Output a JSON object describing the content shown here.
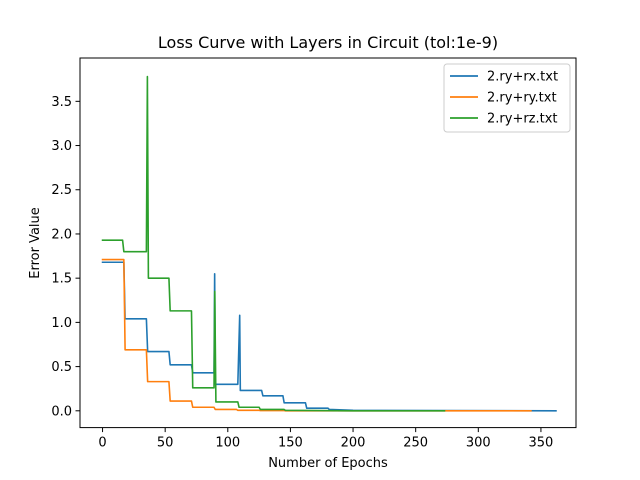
{
  "chart_data": {
    "type": "line",
    "title": "Loss Curve with Layers in Circuit (tol:1e-9)",
    "xlabel": "Number of Epochs",
    "ylabel": "Error Value",
    "xlim": [
      -18,
      378
    ],
    "ylim": [
      -0.19,
      3.99
    ],
    "xticks": [
      0,
      50,
      100,
      150,
      200,
      250,
      300,
      350
    ],
    "yticks": [
      0.0,
      0.5,
      1.0,
      1.5,
      2.0,
      2.5,
      3.0,
      3.5
    ],
    "xtick_labels": [
      "0",
      "50",
      "100",
      "150",
      "200",
      "250",
      "300",
      "350"
    ],
    "ytick_labels": [
      "0.0",
      "0.5",
      "1.0",
      "1.5",
      "2.0",
      "2.5",
      "3.0",
      "3.5"
    ],
    "legend_position": "top-right",
    "series": [
      {
        "name": "2.ry+rx.txt",
        "color": "#1f77b4",
        "x": [
          0,
          17,
          18,
          35,
          36,
          53,
          54,
          71,
          72,
          89,
          89.5,
          90,
          91,
          108,
          109.5,
          110,
          111,
          127,
          128,
          144,
          145,
          162,
          163,
          180,
          181,
          200,
          362
        ],
        "y": [
          1.68,
          1.68,
          1.04,
          1.04,
          0.67,
          0.67,
          0.52,
          0.52,
          0.43,
          0.43,
          1.55,
          0.3,
          0.3,
          0.3,
          1.08,
          0.23,
          0.23,
          0.23,
          0.17,
          0.17,
          0.09,
          0.09,
          0.03,
          0.03,
          0.015,
          0.005,
          0.0
        ]
      },
      {
        "name": "2.ry+ry.txt",
        "color": "#ff7f0e",
        "x": [
          0,
          17,
          18,
          35,
          36,
          53,
          54,
          71,
          72,
          89,
          90,
          107,
          108,
          125,
          126,
          145,
          146,
          200,
          342
        ],
        "y": [
          1.71,
          1.71,
          0.69,
          0.69,
          0.33,
          0.33,
          0.11,
          0.11,
          0.04,
          0.04,
          0.015,
          0.015,
          0.005,
          0.005,
          0.002,
          0.002,
          0.0,
          0.0,
          0.0
        ]
      },
      {
        "name": "2.ry+rz.txt",
        "color": "#2ca02c",
        "x": [
          0,
          16,
          17,
          35,
          35.8,
          36.6,
          53,
          54,
          71,
          72,
          89,
          89.6,
          90.5,
          108,
          109,
          125,
          126,
          145,
          146,
          200,
          273
        ],
        "y": [
          1.93,
          1.93,
          1.8,
          1.8,
          3.78,
          1.5,
          1.5,
          1.13,
          1.13,
          0.26,
          0.26,
          1.35,
          0.1,
          0.1,
          0.04,
          0.04,
          0.015,
          0.015,
          0.005,
          0.0,
          0.0
        ]
      }
    ]
  }
}
